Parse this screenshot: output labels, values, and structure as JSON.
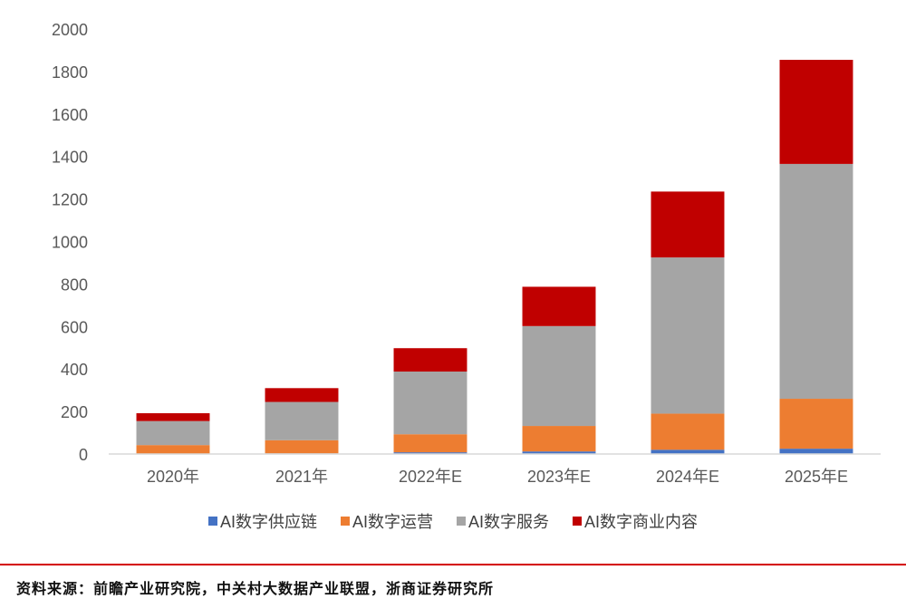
{
  "chart_data": {
    "type": "bar",
    "stacked": true,
    "categories": [
      "2020年",
      "2021年",
      "2022年E",
      "2023年E",
      "2024年E",
      "2025年E"
    ],
    "series": [
      {
        "name": "AI数字供应链",
        "color": "#4472C4",
        "values": [
          2,
          3,
          8,
          12,
          20,
          25
        ]
      },
      {
        "name": "AI数字运营",
        "color": "#ED7D31",
        "values": [
          40,
          62,
          85,
          120,
          170,
          235
        ]
      },
      {
        "name": "AI数字服务",
        "color": "#A5A5A5",
        "values": [
          113,
          180,
          295,
          470,
          735,
          1105
        ]
      },
      {
        "name": "AI数字商业内容",
        "color": "#C00000",
        "values": [
          37,
          65,
          110,
          185,
          310,
          490
        ]
      }
    ],
    "ylim": [
      0,
      2000
    ],
    "yticks": [
      0,
      200,
      400,
      600,
      800,
      1000,
      1200,
      1400,
      1600,
      1800,
      2000
    ],
    "title": "",
    "xlabel": "",
    "ylabel": "",
    "grid": false,
    "legend_position": "bottom"
  },
  "source_note": "资料来源：前瞻产业研究院，中关村大数据产业联盟，浙商证券研究所"
}
